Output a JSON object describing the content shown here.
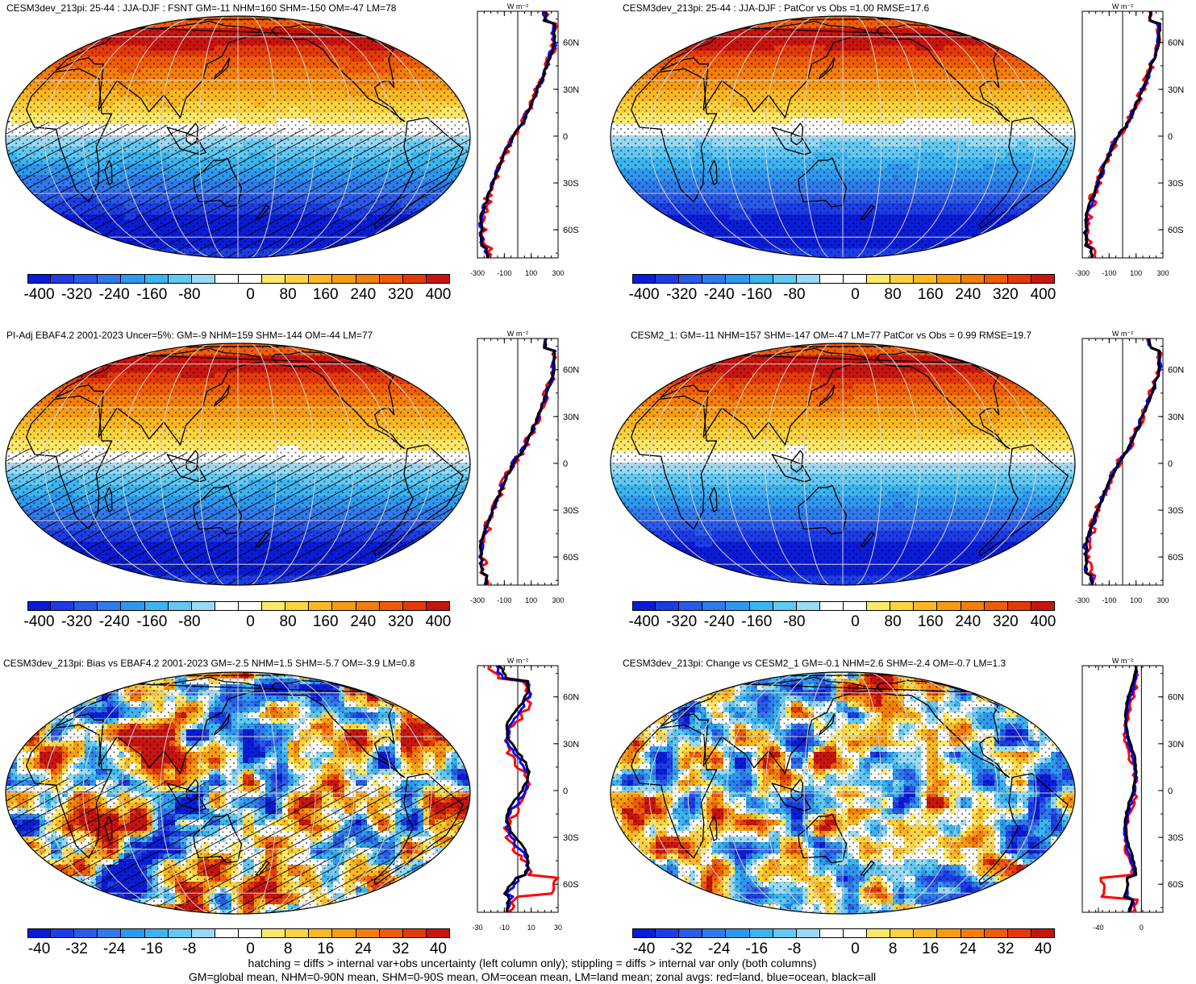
{
  "panels": [
    {
      "title": "CESM3dev_213pi: 25-44 : JJA-DJF : FSNT GM=-11 NHM=160 SHM=-150 OM=-47 LM=78",
      "scale": "abs",
      "hatch": true,
      "noise": 0.04,
      "cbar_labels": [
        "-400",
        "-320",
        "-240",
        "-160",
        "-80",
        "0",
        "80",
        "160",
        "240",
        "320",
        "400"
      ],
      "zonal": {
        "units": "W m⁻²",
        "xticks": [
          "-300",
          "-100",
          "100",
          "300"
        ],
        "xvals": [
          -300,
          -100,
          100,
          300
        ],
        "xlim": [
          -300,
          300
        ],
        "lat_labels": [
          "60N",
          "30N",
          "0",
          "30S",
          "60S"
        ],
        "kind": "abs"
      }
    },
    {
      "title": "CESM3dev_213pi: 25-44 : JJA-DJF : PatCor vs Obs =1.00 RMSE=17.6",
      "scale": "abs",
      "hatch": false,
      "noise": 0.03,
      "cbar_labels": [
        "-400",
        "-320",
        "-240",
        "-160",
        "-80",
        "0",
        "80",
        "160",
        "240",
        "320",
        "400"
      ],
      "zonal": {
        "units": "W m⁻²",
        "xticks": [
          "-300",
          "-100",
          "100",
          "300"
        ],
        "xvals": [
          -300,
          -100,
          100,
          300
        ],
        "xlim": [
          -300,
          300
        ],
        "lat_labels": [
          "60N",
          "30N",
          "0",
          "30S",
          "60S"
        ],
        "kind": "abs"
      }
    },
    {
      "title": "PI-Adj EBAF4.2 2001-2023 Uncer=5%: GM=-9 NHM=159 SHM=-144 OM=-44 LM=77",
      "scale": "abs",
      "hatch": true,
      "noise": 0.02,
      "cbar_labels": [
        "-400",
        "-320",
        "-240",
        "-160",
        "-80",
        "0",
        "80",
        "160",
        "240",
        "320",
        "400"
      ],
      "zonal": {
        "units": "W m⁻²",
        "xticks": [
          "-300",
          "-100",
          "100",
          "300"
        ],
        "xvals": [
          -300,
          -100,
          100,
          300
        ],
        "xlim": [
          -300,
          300
        ],
        "lat_labels": [
          "60N",
          "30N",
          "0",
          "30S",
          "60S"
        ],
        "kind": "abs"
      }
    },
    {
      "title": "CESM2_1: GM=-11 NHM=157 SHM=-147 OM=-47 LM=77 PatCor vs Obs = 0.99 RMSE=19.7",
      "scale": "abs",
      "hatch": false,
      "noise": 0.03,
      "cbar_labels": [
        "-400",
        "-320",
        "-240",
        "-160",
        "-80",
        "0",
        "80",
        "160",
        "240",
        "320",
        "400"
      ],
      "zonal": {
        "units": "W m⁻²",
        "xticks": [
          "-300",
          "-100",
          "100",
          "300"
        ],
        "xvals": [
          -300,
          -100,
          100,
          300
        ],
        "xlim": [
          -300,
          300
        ],
        "lat_labels": [
          "60N",
          "30N",
          "0",
          "30S",
          "60S"
        ],
        "kind": "abs"
      }
    },
    {
      "title": "CESM3dev_213pi: Bias vs EBAF4.2 2001-2023 GM=-2.5 NHM=1.5 SHM=-5.7 OM=-3.9 LM=0.8",
      "scale": "diff",
      "hatch": true,
      "noise": 1.0,
      "cbar_labels": [
        "-40",
        "-32",
        "-24",
        "-16",
        "-8",
        "0",
        "8",
        "16",
        "24",
        "32",
        "40"
      ],
      "zonal": {
        "units": "W m⁻²",
        "xticks": [
          "-30",
          "-10",
          "10",
          "30"
        ],
        "xvals": [
          -30,
          -10,
          10,
          30
        ],
        "xlim": [
          -30,
          30
        ],
        "lat_labels": [
          "60N",
          "30N",
          "0",
          "30S",
          "60S"
        ],
        "kind": "bias"
      }
    },
    {
      "title": "CESM3dev_213pi: Change vs CESM2_1 GM=-0.1 NHM=2.6 SHM=-2.4 OM=-0.7 LM=1.3",
      "scale": "diff",
      "hatch": false,
      "noise": 0.9,
      "cbar_labels": [
        "-40",
        "-32",
        "-24",
        "-16",
        "-8",
        "0",
        "8",
        "16",
        "24",
        "32",
        "40"
      ],
      "zonal": {
        "units": "W m⁻²",
        "xticks": [
          "-40",
          "0"
        ],
        "xvals": [
          -40,
          0
        ],
        "xlim": [
          -55,
          20
        ],
        "lat_labels": [
          "60N",
          "30N",
          "0",
          "30S",
          "60S"
        ],
        "kind": "change"
      }
    }
  ],
  "palette": [
    "#0a1cd8",
    "#1e3ce6",
    "#2a5ae8",
    "#2f7aec",
    "#2e98ee",
    "#3cb4f0",
    "#62c8f2",
    "#99d9f4",
    "#ffffff",
    "#ffffff",
    "#fde86a",
    "#fbd340",
    "#f9b824",
    "#f79c12",
    "#f47e0c",
    "#ef5c08",
    "#e43a0a",
    "#c8140f"
  ],
  "zonal_legend": {
    "land": "red",
    "ocean": "blue",
    "all": "black"
  },
  "footer": [
    "hatching = diffs > internal var+obs uncertainty (left column only); stippling = diffs > internal var only (both columns)",
    "GM=global mean, NHM=0-90N mean, SHM=0-90S mean, OM=ocean mean, LM=land mean; zonal avgs: red=land, blue=ocean, black=all"
  ]
}
